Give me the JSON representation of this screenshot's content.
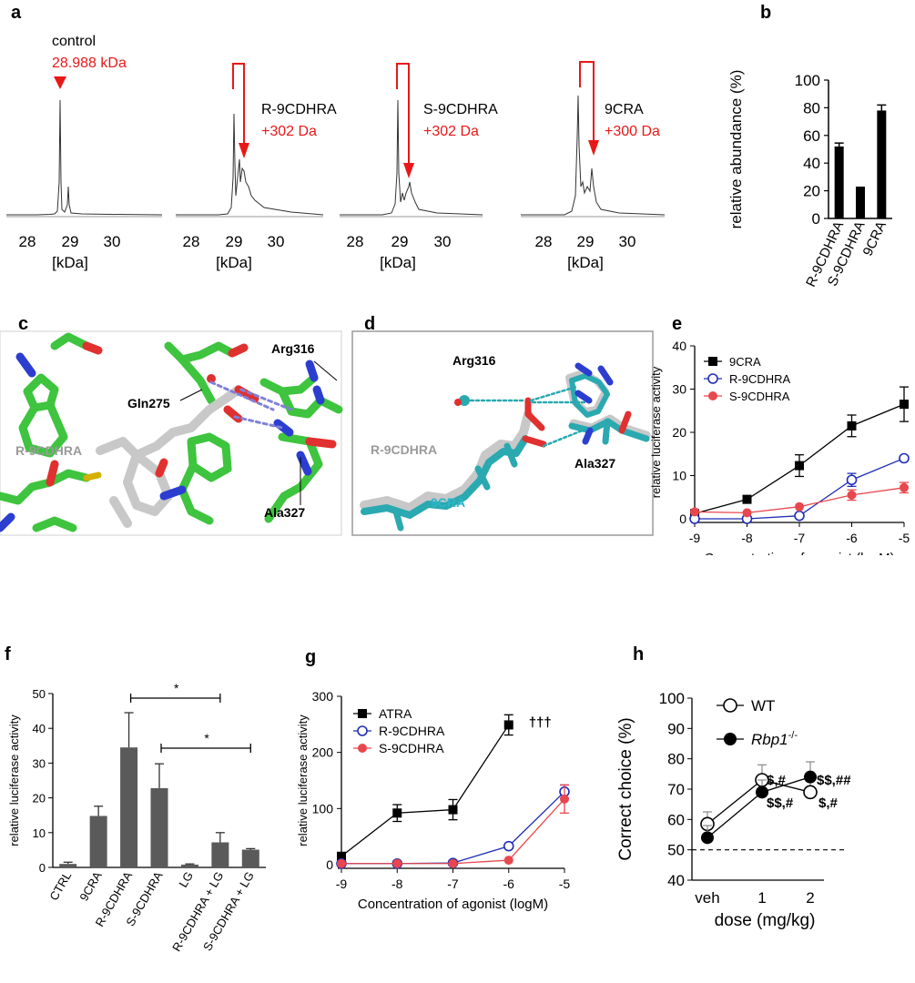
{
  "panels": {
    "a": {
      "letter": "a",
      "xlabel": "[kDa]",
      "ticks": [
        "28",
        "29",
        "30"
      ],
      "spectra": [
        {
          "label": "control",
          "shift": "28.988 kDa"
        },
        {
          "label": "R-9CDHRA",
          "shift": "+302 Da"
        },
        {
          "label": "S-9CDHRA",
          "shift": "+302 Da"
        },
        {
          "label": "9CRA",
          "shift": "+300 Da"
        }
      ]
    },
    "b": {
      "letter": "b"
    },
    "c": {
      "letter": "c",
      "labels": {
        "gln": "Gln275",
        "arg": "Arg316",
        "ligand": "R-9CDHRA",
        "ala": "Ala327"
      }
    },
    "d": {
      "letter": "d",
      "labels": {
        "arg": "Arg316",
        "ligand1": "R-9CDHRA",
        "ligand2": "9CRA",
        "ala": "Ala327"
      }
    },
    "e": {
      "letter": "e"
    },
    "f": {
      "letter": "f",
      "sig1": "*",
      "sig2": "*"
    },
    "g": {
      "letter": "g",
      "sig": "†††"
    },
    "h": {
      "letter": "h",
      "ann": {
        "wt1": "$,#",
        "wt2": "$,#",
        "rbp1": "$$,#",
        "rbp2": "$$,##"
      }
    }
  },
  "chart_data": [
    {
      "id": "b",
      "type": "bar",
      "categories": [
        "R-9CDHRA",
        "S-9CDHRA",
        "9CRA"
      ],
      "values": [
        52,
        22,
        78
      ],
      "errors": [
        2.5,
        0.5,
        4
      ],
      "ylabel": "relative  abundance (%)",
      "ylim": [
        0,
        100
      ],
      "yticks": [
        0,
        20,
        40,
        60,
        80,
        100
      ],
      "color": "#000000"
    },
    {
      "id": "e",
      "type": "line",
      "xlabel": "Concentration of agonist (logM)",
      "ylabel": "relative luciferase activity",
      "xlim": [
        -9,
        -5
      ],
      "ylim": [
        0,
        40
      ],
      "xticks": [
        -9,
        -8,
        -7,
        -6,
        -5
      ],
      "yticks": [
        0,
        10,
        20,
        30,
        40
      ],
      "legend": "top-left",
      "series": [
        {
          "name": "9CRA",
          "color": "#000000",
          "marker": "square",
          "x": [
            -9,
            -8,
            -7,
            -6,
            -5
          ],
          "y": [
            1.2,
            4.5,
            12.3,
            21.5,
            26.5
          ],
          "err": [
            0,
            0.5,
            2.5,
            2.5,
            4
          ]
        },
        {
          "name": "R-9CDHRA",
          "color": "#1f2db8",
          "marker": "open-circle",
          "x": [
            -9,
            -8,
            -7,
            -6,
            -5
          ],
          "y": [
            0,
            0,
            0.7,
            9,
            14
          ],
          "err": [
            0,
            0,
            0,
            1.5,
            0.5
          ]
        },
        {
          "name": "S-9CDHRA",
          "color": "#e8474e",
          "marker": "circle",
          "x": [
            -9,
            -8,
            -7,
            -6,
            -5
          ],
          "y": [
            1.6,
            1.4,
            2.8,
            5.5,
            7.2
          ],
          "err": [
            0,
            0,
            0,
            1.2,
            1.2
          ]
        }
      ]
    },
    {
      "id": "f",
      "type": "bar",
      "categories": [
        "CTRL",
        "9CRA",
        "R-9CDHRA",
        "S-9CDHRA",
        "LG",
        "R-9CDHRA + LG",
        "S-9CDHRA + LG"
      ],
      "values": [
        1,
        14.8,
        34.5,
        22.8,
        0.8,
        7.2,
        5.1
      ],
      "errors": [
        0.5,
        2.8,
        10,
        7,
        0.2,
        2.8,
        0.3
      ],
      "ylabel": "relative luciferase activity",
      "ylim": [
        0,
        50
      ],
      "yticks": [
        0,
        10,
        20,
        30,
        40,
        50
      ],
      "color": "#5a5a5a"
    },
    {
      "id": "g",
      "type": "line",
      "xlabel": "Concentration of agonist (logM)",
      "ylabel": "relative luciferase activity",
      "xlim": [
        -9,
        -5
      ],
      "ylim": [
        0,
        300
      ],
      "xticks": [
        -9,
        -8,
        -7,
        -6,
        -5
      ],
      "yticks": [
        0,
        100,
        200,
        300
      ],
      "legend": "top-left",
      "series": [
        {
          "name": "ATRA",
          "color": "#000000",
          "marker": "square",
          "x": [
            -9,
            -8,
            -7,
            -6
          ],
          "y": [
            15,
            92,
            98,
            249
          ],
          "err": [
            5,
            15,
            18,
            18
          ]
        },
        {
          "name": "R-9CDHRA",
          "color": "#1f2db8",
          "marker": "open-circle",
          "x": [
            -9,
            -8,
            -7,
            -6,
            -5
          ],
          "y": [
            2,
            2,
            3,
            33,
            130
          ],
          "err": [
            0,
            0,
            0,
            0,
            12
          ]
        },
        {
          "name": "S-9CDHRA",
          "color": "#e8474e",
          "marker": "circle",
          "x": [
            -9,
            -8,
            -7,
            -6,
            -5
          ],
          "y": [
            2,
            2,
            2,
            8,
            117
          ],
          "err": [
            0,
            0,
            0,
            0,
            25
          ]
        }
      ]
    },
    {
      "id": "h",
      "type": "line",
      "xlabel": "dose (mg/kg)",
      "ylabel": "Correct choice (%)",
      "categories": [
        "veh",
        "1",
        "2"
      ],
      "ylim": [
        40,
        100
      ],
      "yticks": [
        40,
        50,
        60,
        70,
        80,
        90,
        100
      ],
      "reference_line": 50,
      "legend": "top-left",
      "series": [
        {
          "name": "WT",
          "marker": "open-circle",
          "color": "#000000",
          "values": [
            58.5,
            73,
            69
          ],
          "err": [
            4,
            5,
            4
          ]
        },
        {
          "name": "Rbp1",
          "name_superscript": "-/-",
          "marker": "circle",
          "color": "#000000",
          "values": [
            54,
            69,
            74
          ],
          "err": [
            4,
            4,
            5
          ]
        }
      ]
    }
  ]
}
